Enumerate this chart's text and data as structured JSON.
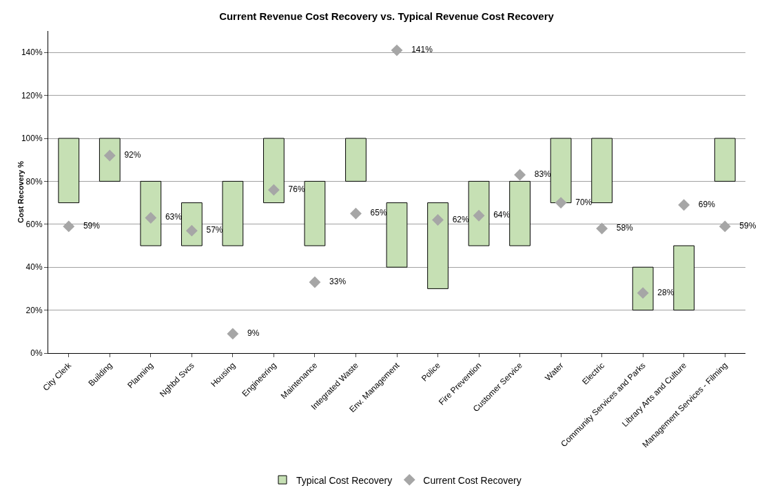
{
  "chart_data": {
    "type": "bar",
    "title": "Current Revenue Cost Recovery vs. Typical Revenue Cost Recovery",
    "ylabel": "Cost Recovery %",
    "categories": [
      "City Clerk",
      "Building",
      "Planning",
      "Nghbd Svcs",
      "Housing",
      "Engineering",
      "Maintenance",
      "Integrated Waste",
      "Env. Management",
      "Police",
      "Fire Prevention",
      "Customer Service",
      "Water",
      "Electric",
      "Community Services and Parks",
      "Library Arts and Culture",
      "Management Services - Filming"
    ],
    "series": [
      {
        "name": "Typical Cost Recovery",
        "type": "bar",
        "color": "#c6e0b4",
        "base": [
          70,
          80,
          50,
          50,
          50,
          70,
          50,
          80,
          40,
          30,
          50,
          50,
          70,
          70,
          20,
          20,
          80
        ],
        "values": [
          30,
          20,
          30,
          20,
          30,
          30,
          30,
          20,
          30,
          40,
          30,
          30,
          30,
          30,
          20,
          30,
          20
        ]
      },
      {
        "name": "Current Cost Recovery",
        "type": "scatter",
        "color": "#a6a6a6",
        "marker": "diamond",
        "x": [
          "City Clerk",
          "Building",
          "Planning",
          "Nghbd Svcs",
          "Housing",
          "Engineering",
          "Maintenance",
          "Integrated Waste",
          "Env. Management",
          "Police",
          "Fire Prevention",
          "Customer Service",
          "Water",
          "Electric",
          "Community Services and Parks",
          "Library Arts and Culture",
          "Management Services - Filming"
        ],
        "values": [
          59,
          92,
          63,
          57,
          9,
          76,
          33,
          65,
          141,
          62,
          64,
          83,
          70,
          58,
          28,
          69,
          59
        ],
        "value_labels": [
          "59%",
          "92%",
          "63%",
          "57%",
          "9%",
          "76%",
          "33%",
          "65%",
          "141%",
          "62%",
          "64%",
          "83%",
          "70%",
          "58%",
          "28%",
          "69%",
          "59%"
        ]
      }
    ],
    "ylim": [
      0,
      150
    ],
    "yticks": [
      {
        "value": 0,
        "label": "0%"
      },
      {
        "value": 20,
        "label": "20%"
      },
      {
        "value": 40,
        "label": "40%"
      },
      {
        "value": 60,
        "label": "60%"
      },
      {
        "value": 80,
        "label": "80%"
      },
      {
        "value": 100,
        "label": "100%"
      },
      {
        "value": 120,
        "label": "120%"
      },
      {
        "value": 140,
        "label": "140%"
      }
    ],
    "grid": "y",
    "legend": "bottom"
  }
}
